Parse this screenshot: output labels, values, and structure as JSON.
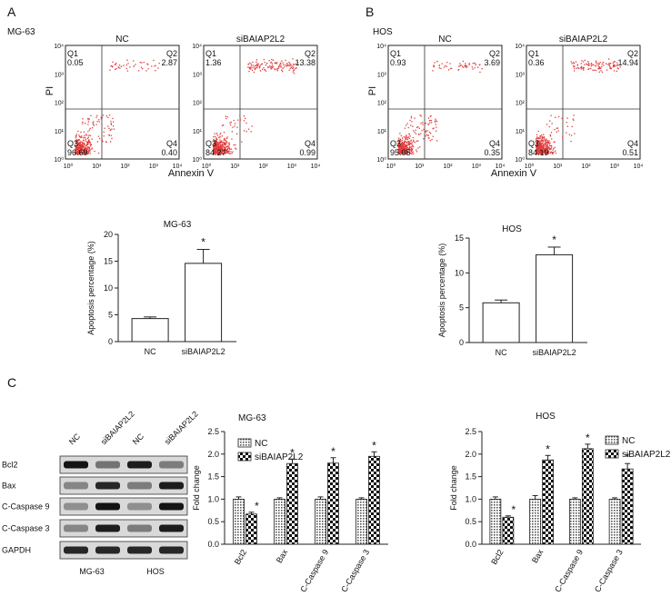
{
  "panels": {
    "a": "A",
    "b": "B",
    "c": "C"
  },
  "flow": [
    {
      "cell": "MG-63",
      "plots": [
        {
          "title": "NC",
          "q1": "0.05",
          "q2": "2.87",
          "q3": "96.69",
          "q4": "0.40"
        },
        {
          "title": "siBAIAP2L2",
          "q1": "1.36",
          "q2": "13.38",
          "q3": "84.27",
          "q4": "0.99"
        }
      ]
    },
    {
      "cell": "HOS",
      "plots": [
        {
          "title": "NC",
          "q1": "0.93",
          "q2": "3.69",
          "q3": "95.05",
          "q4": "0.35"
        },
        {
          "title": "siBAIAP2L2",
          "q1": "0.36",
          "q2": "14.94",
          "q3": "84.19",
          "q4": "0.51"
        }
      ]
    }
  ],
  "flow_axes": {
    "xlabel": "Annexin V",
    "ylabel": "PI",
    "quadrants": [
      "Q1",
      "Q2",
      "Q3",
      "Q4"
    ],
    "ticks": [
      "10⁰",
      "10¹",
      "10²",
      "10³",
      "10⁴"
    ]
  },
  "chart_data": [
    {
      "type": "bar",
      "title": "MG-63",
      "ylabel": "Apoptosis percentage (%)",
      "categories": [
        "NC",
        "siBAIAP2L2"
      ],
      "values": [
        4.3,
        14.6
      ],
      "errors": [
        0.3,
        2.6
      ],
      "ylim": [
        0,
        20
      ],
      "yticks": [
        "0",
        "5",
        "10",
        "15",
        "20"
      ],
      "significance": [
        "",
        "*"
      ]
    },
    {
      "type": "bar",
      "title": "HOS",
      "ylabel": "Apoptosis percentage (%)",
      "categories": [
        "NC",
        "siBAIAP2L2"
      ],
      "values": [
        5.7,
        12.6
      ],
      "errors": [
        0.4,
        1.1
      ],
      "ylim": [
        0,
        15
      ],
      "yticks": [
        "0",
        "5",
        "10",
        "15"
      ],
      "significance": [
        "",
        "*"
      ]
    },
    {
      "type": "bar",
      "title": "MG-63",
      "ylabel": "Fold change",
      "categories": [
        "Bcl2",
        "Bax",
        "C-Caspase 9",
        "C-Caspase 3"
      ],
      "series": [
        {
          "name": "NC",
          "values": [
            1.0,
            1.0,
            1.0,
            1.0
          ],
          "errors": [
            0.05,
            0.03,
            0.05,
            0.03
          ]
        },
        {
          "name": "siBAIAP2L2",
          "values": [
            0.67,
            1.79,
            1.8,
            1.95
          ],
          "errors": [
            0.04,
            0.1,
            0.12,
            0.1
          ]
        }
      ],
      "ylim": [
        0,
        2.5
      ],
      "yticks": [
        "0.0",
        "0.5",
        "1.0",
        "1.5",
        "2.0",
        "2.5"
      ],
      "legend": "top-left",
      "significance": [
        "*",
        "*",
        "*",
        "*"
      ]
    },
    {
      "type": "bar",
      "title": "HOS",
      "ylabel": "Fold change",
      "categories": [
        "Bcl2",
        "Bax",
        "C-Caspase 9",
        "C-Caspase 3"
      ],
      "series": [
        {
          "name": "NC",
          "values": [
            1.0,
            1.0,
            1.0,
            1.0
          ],
          "errors": [
            0.05,
            0.08,
            0.03,
            0.03
          ]
        },
        {
          "name": "siBAIAP2L2",
          "values": [
            0.6,
            1.87,
            2.12,
            1.67
          ],
          "errors": [
            0.03,
            0.1,
            0.1,
            0.12
          ]
        }
      ],
      "ylim": [
        0,
        2.5
      ],
      "yticks": [
        "0.0",
        "0.5",
        "1.0",
        "1.5",
        "2.0",
        "2.5"
      ],
      "legend": "top-right",
      "significance": [
        "*",
        "*",
        "*",
        "*"
      ]
    }
  ],
  "western": {
    "lanes": [
      "NC",
      "siBAIAP2L2",
      "NC",
      "siBAIAP2L2"
    ],
    "rows": [
      "Bcl2",
      "Bax",
      "C-Caspase 9",
      "C-Caspase 3",
      "GAPDH"
    ],
    "groups": [
      "MG-63",
      "HOS"
    ]
  }
}
